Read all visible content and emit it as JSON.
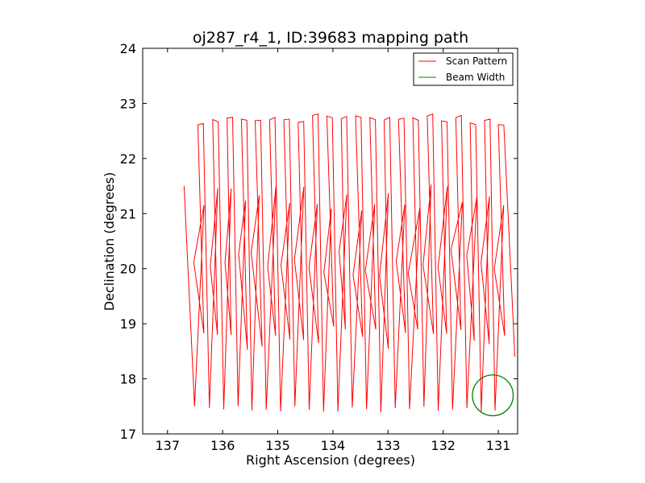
{
  "chart_data": {
    "type": "line",
    "title": "oj287_r4_1, ID:39683 mapping path",
    "xlabel": "Right Ascension (degrees)",
    "ylabel": "Declination (degrees)",
    "xlim": [
      137.45,
      130.65
    ],
    "ylim": [
      17,
      24
    ],
    "x_ticks": [
      "137",
      "136",
      "135",
      "134",
      "133",
      "132",
      "131"
    ],
    "y_ticks": [
      "17",
      "18",
      "19",
      "20",
      "21",
      "22",
      "23",
      "24"
    ],
    "grid": false,
    "legend_placement": "top-right",
    "series": [
      {
        "name": "Scan Pattern",
        "color": "#ff0000",
        "columns": [
          136.45,
          136.18,
          135.92,
          135.66,
          135.41,
          135.15,
          134.89,
          134.63,
          134.37,
          134.11,
          133.85,
          133.59,
          133.33,
          133.07,
          132.81,
          132.55,
          132.29,
          132.03,
          131.77,
          131.51,
          131.25,
          131.0
        ],
        "dec_top": 22.7,
        "dec_bottom": 17.45
      },
      {
        "name": "Beam Width",
        "color": "#008000",
        "center": [
          131.1,
          17.7
        ],
        "radius": 0.37
      }
    ]
  }
}
